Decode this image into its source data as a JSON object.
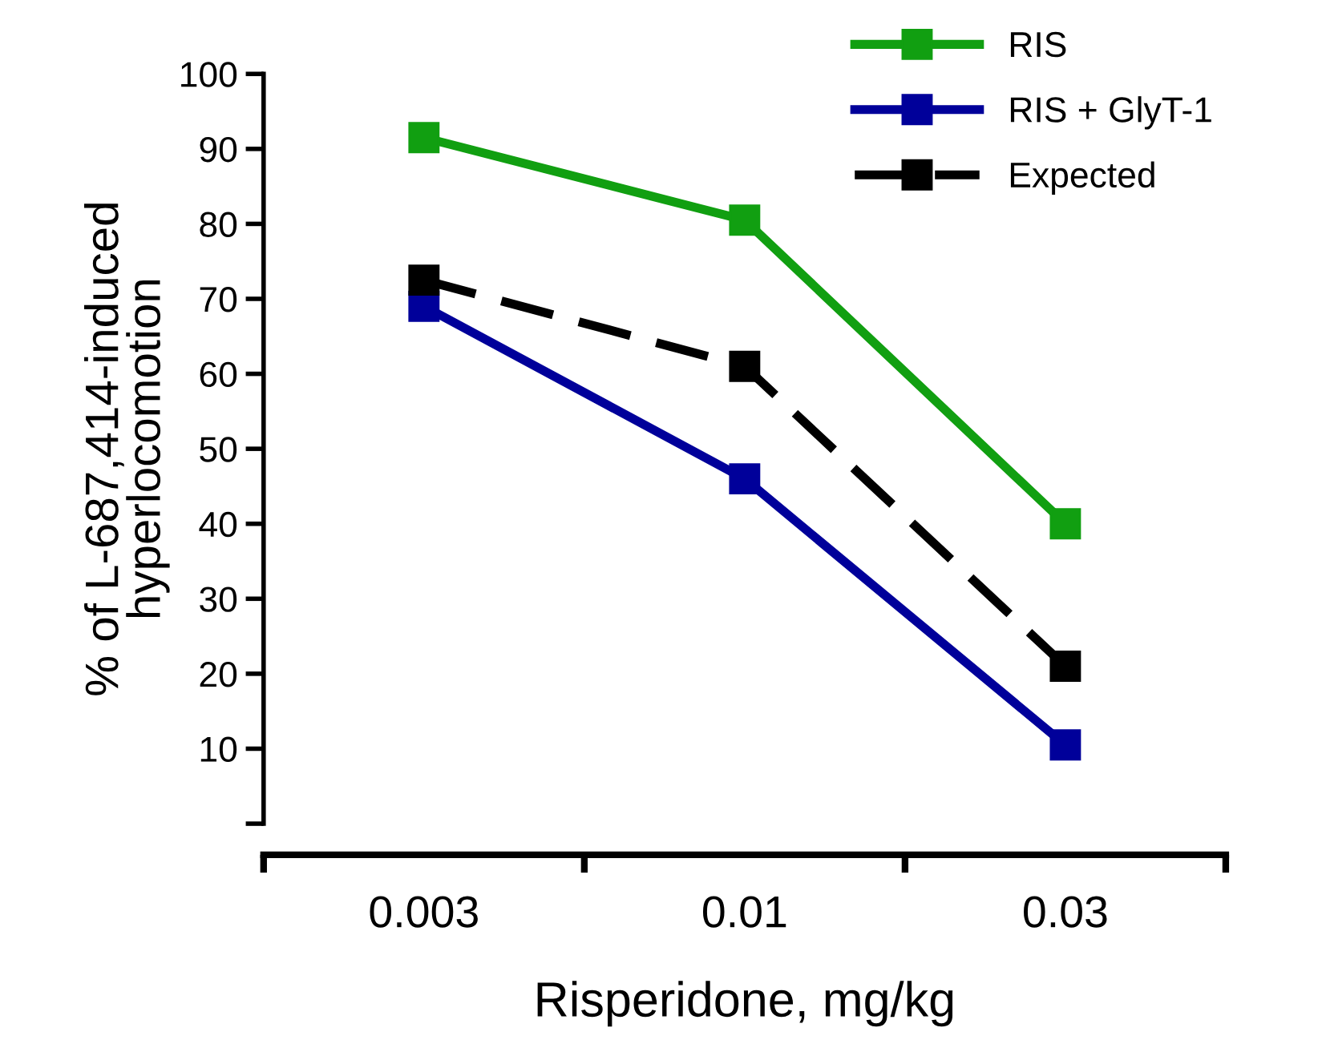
{
  "chart_data": {
    "type": "line",
    "xlabel": "Risperidone, mg/kg",
    "ylabel": "% of L-687,414-induced\nhyperlocomotion",
    "categories": [
      "0.003",
      "0.01",
      "0.03"
    ],
    "series": [
      {
        "name": "RIS",
        "color": "#119f11",
        "values": [
          91.5,
          80.5,
          40
        ],
        "line_style": "solid"
      },
      {
        "name": "RIS + GlyT-1",
        "color": "#00009a",
        "values": [
          69,
          46,
          10.5
        ],
        "line_style": "solid"
      },
      {
        "name": "Expected",
        "color": "#000000",
        "values": [
          72.5,
          61,
          21
        ],
        "line_style": "dashed"
      }
    ],
    "ylim": [
      0,
      100
    ],
    "yticks": [
      {
        "value": 0,
        "label": null
      },
      10,
      20,
      30,
      40,
      50,
      60,
      70,
      80,
      90,
      100
    ],
    "marker": "square",
    "grid": false,
    "legend": "top right"
  }
}
